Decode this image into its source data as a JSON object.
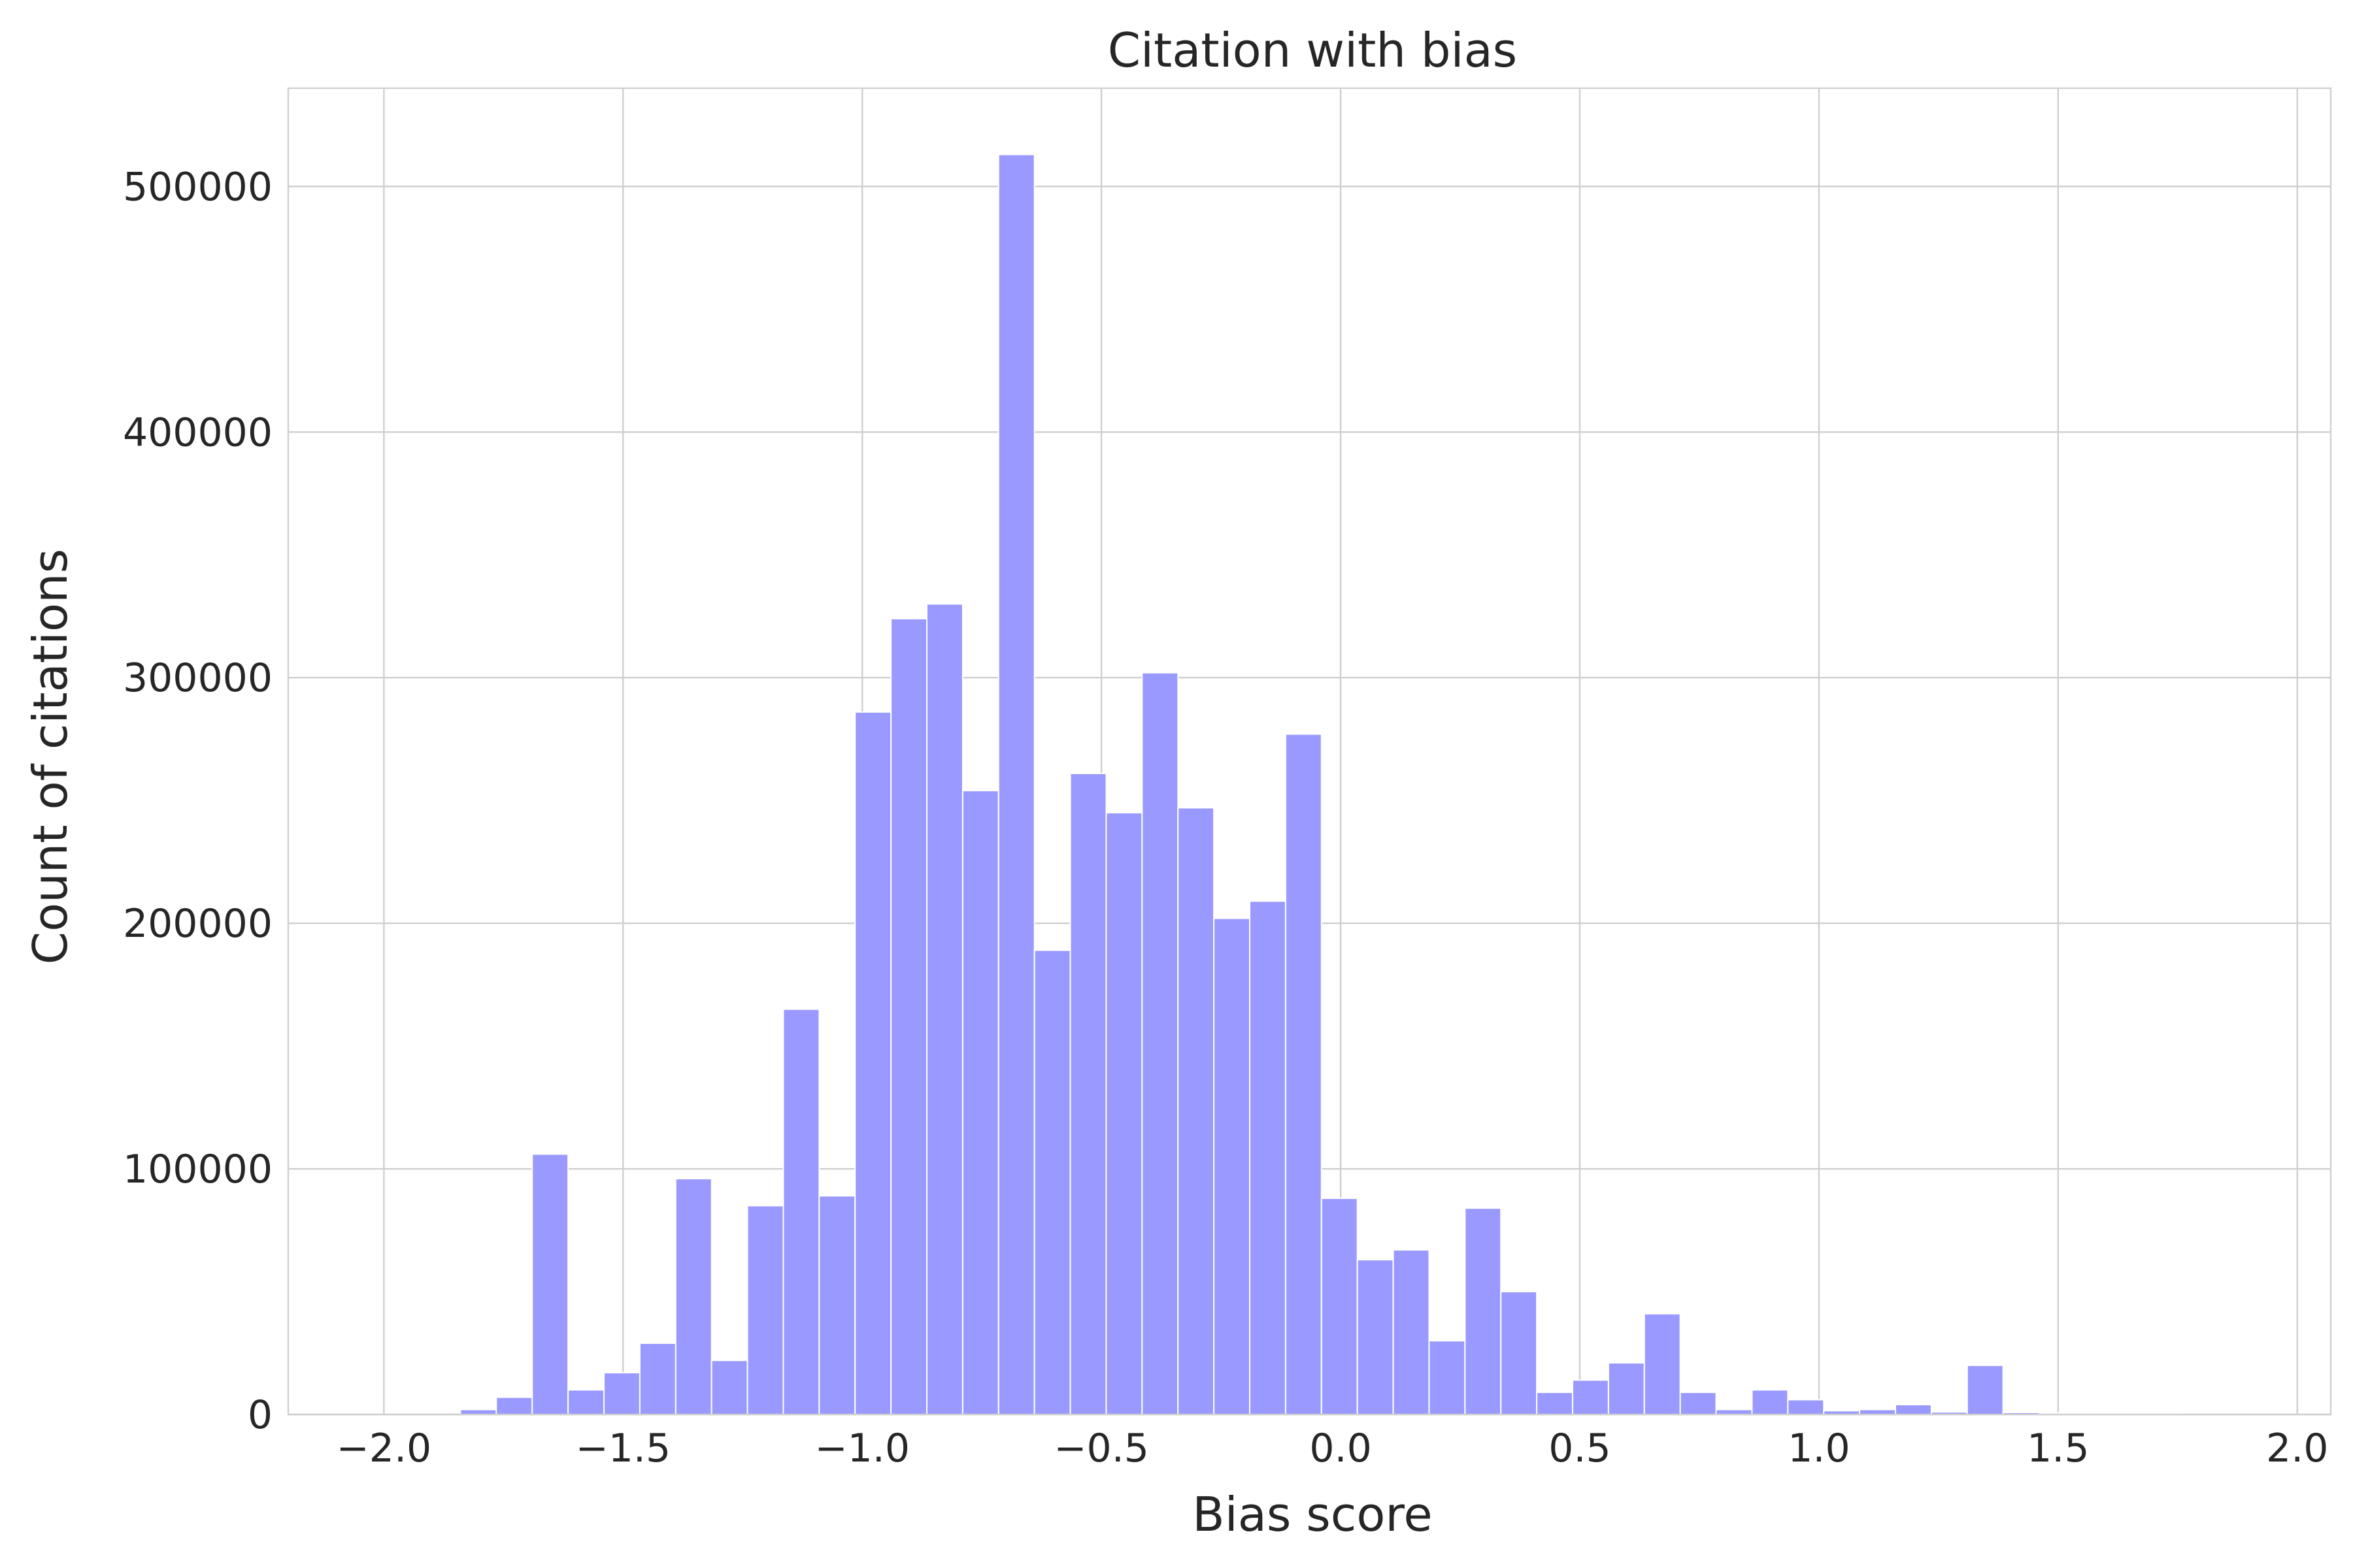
{
  "chart_data": {
    "type": "bar",
    "title": "Citation with bias",
    "xlabel": "Bias score",
    "ylabel": "Count of citations",
    "xlim": [
      -2.2,
      2.07
    ],
    "ylim": [
      0,
      540000
    ],
    "xticks": [
      -2.0,
      -1.5,
      -1.0,
      -0.5,
      0.0,
      0.5,
      1.0,
      1.5,
      2.0
    ],
    "xtick_labels": [
      "−2.0",
      "−1.5",
      "−1.0",
      "−0.5",
      "0.0",
      "0.5",
      "1.0",
      "1.5",
      "2.0"
    ],
    "yticks": [
      0,
      100000,
      200000,
      300000,
      400000,
      500000
    ],
    "ytick_labels": [
      "0",
      "100000",
      "200000",
      "300000",
      "400000",
      "500000"
    ],
    "grid": true,
    "legend": "none",
    "bar_color": "#9999ff",
    "bins": [
      {
        "x0": -1.84,
        "x1": -1.765,
        "value": 2000
      },
      {
        "x0": -1.765,
        "x1": -1.69,
        "value": 7000
      },
      {
        "x0": -1.69,
        "x1": -1.615,
        "value": 106000
      },
      {
        "x0": -1.615,
        "x1": -1.54,
        "value": 10000
      },
      {
        "x0": -1.54,
        "x1": -1.465,
        "value": 17000
      },
      {
        "x0": -1.465,
        "x1": -1.39,
        "value": 29000
      },
      {
        "x0": -1.39,
        "x1": -1.315,
        "value": 96000
      },
      {
        "x0": -1.315,
        "x1": -1.24,
        "value": 22000
      },
      {
        "x0": -1.24,
        "x1": -1.165,
        "value": 85000
      },
      {
        "x0": -1.165,
        "x1": -1.09,
        "value": 165000
      },
      {
        "x0": -1.09,
        "x1": -1.015,
        "value": 89000
      },
      {
        "x0": -1.015,
        "x1": -0.94,
        "value": 286000
      },
      {
        "x0": -0.94,
        "x1": -0.865,
        "value": 324000
      },
      {
        "x0": -0.865,
        "x1": -0.79,
        "value": 330000
      },
      {
        "x0": -0.79,
        "x1": -0.715,
        "value": 254000
      },
      {
        "x0": -0.715,
        "x1": -0.64,
        "value": 513000
      },
      {
        "x0": -0.64,
        "x1": -0.565,
        "value": 189000
      },
      {
        "x0": -0.565,
        "x1": -0.49,
        "value": 261000
      },
      {
        "x0": -0.49,
        "x1": -0.415,
        "value": 245000
      },
      {
        "x0": -0.415,
        "x1": -0.34,
        "value": 302000
      },
      {
        "x0": -0.34,
        "x1": -0.265,
        "value": 247000
      },
      {
        "x0": -0.265,
        "x1": -0.19,
        "value": 202000
      },
      {
        "x0": -0.19,
        "x1": -0.115,
        "value": 209000
      },
      {
        "x0": -0.115,
        "x1": -0.04,
        "value": 277000
      },
      {
        "x0": -0.04,
        "x1": 0.035,
        "value": 88000
      },
      {
        "x0": 0.035,
        "x1": 0.11,
        "value": 63000
      },
      {
        "x0": 0.11,
        "x1": 0.185,
        "value": 67000
      },
      {
        "x0": 0.185,
        "x1": 0.26,
        "value": 30000
      },
      {
        "x0": 0.26,
        "x1": 0.335,
        "value": 84000
      },
      {
        "x0": 0.335,
        "x1": 0.41,
        "value": 50000
      },
      {
        "x0": 0.41,
        "x1": 0.485,
        "value": 9000
      },
      {
        "x0": 0.485,
        "x1": 0.56,
        "value": 14000
      },
      {
        "x0": 0.56,
        "x1": 0.635,
        "value": 21000
      },
      {
        "x0": 0.635,
        "x1": 0.71,
        "value": 41000
      },
      {
        "x0": 0.71,
        "x1": 0.785,
        "value": 9000
      },
      {
        "x0": 0.785,
        "x1": 0.86,
        "value": 2000
      },
      {
        "x0": 0.86,
        "x1": 0.935,
        "value": 10000
      },
      {
        "x0": 0.935,
        "x1": 1.01,
        "value": 6000
      },
      {
        "x0": 1.01,
        "x1": 1.085,
        "value": 1500
      },
      {
        "x0": 1.085,
        "x1": 1.16,
        "value": 2000
      },
      {
        "x0": 1.16,
        "x1": 1.235,
        "value": 4000
      },
      {
        "x0": 1.235,
        "x1": 1.31,
        "value": 1000
      },
      {
        "x0": 1.31,
        "x1": 1.385,
        "value": 20000
      },
      {
        "x0": 1.385,
        "x1": 1.46,
        "value": 800
      },
      {
        "x0": 1.46,
        "x1": 1.535,
        "value": 500
      },
      {
        "x0": 1.535,
        "x1": 1.61,
        "value": 500
      },
      {
        "x0": 1.61,
        "x1": 1.685,
        "value": 500
      },
      {
        "x0": 1.685,
        "x1": 1.76,
        "value": 500
      }
    ]
  }
}
